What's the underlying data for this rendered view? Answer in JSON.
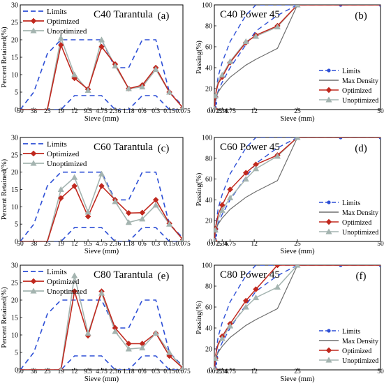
{
  "colors": {
    "limits": "#2d4fd6",
    "optimized": "#c0281e",
    "unoptimized": "#a4b4b0",
    "max_density": "#6e6e6e"
  },
  "chart_data": [
    {
      "id": "a",
      "type": "line",
      "title": "C40 Tarantula",
      "panel_label": "(a)",
      "xlabel": "Sieve (mm)",
      "ylabel": "Percent Retained(%)",
      "categories": [
        "50",
        "38",
        "25",
        "19",
        "12",
        "9.5",
        "4.75",
        "2.36",
        "1.18",
        "0.6",
        "0.3",
        "0.15",
        "0.075"
      ],
      "ylim": [
        0,
        30
      ],
      "yticks": [
        0,
        5,
        10,
        15,
        20,
        25,
        30
      ],
      "legend": [
        "Limits",
        "Optimized",
        "Unoptimized"
      ],
      "limits_upper": [
        0,
        5,
        16,
        20,
        20,
        20,
        20,
        12,
        12,
        20,
        20,
        5,
        1
      ],
      "limits_lower": [
        0,
        0,
        0,
        0,
        4,
        4,
        4,
        0,
        0,
        4,
        4,
        0,
        0
      ],
      "series": [
        {
          "name": "Optimized",
          "values": [
            0,
            0,
            0,
            18.5,
            9,
            5.8,
            18,
            13,
            6,
            7,
            12,
            5,
            0.5
          ]
        },
        {
          "name": "Unoptimized",
          "values": [
            0,
            0,
            0,
            20.5,
            10,
            5.5,
            20,
            12.5,
            6,
            6.5,
            11.5,
            5,
            0.5
          ]
        }
      ]
    },
    {
      "id": "b",
      "type": "line",
      "title": "C40 Power 45",
      "panel_label": "(b)",
      "xlabel": "Sieve (mm)",
      "ylabel": "Passing(%)",
      "xticks": [
        0.075,
        2.36,
        4.75,
        12,
        25,
        50
      ],
      "xtick_labels": [
        "0.075",
        "2.36",
        "4.75",
        "12",
        "25",
        "50"
      ],
      "ylim": [
        0,
        100
      ],
      "yticks": [
        0,
        20,
        40,
        60,
        80,
        100
      ],
      "legend": [
        "Limits",
        "Max Density",
        "Optimized",
        "Unoptimized"
      ],
      "sieves": [
        0.075,
        0.15,
        0.3,
        0.6,
        1.18,
        2.36,
        4.75,
        9.5,
        12.5,
        19,
        25,
        38,
        50
      ],
      "limits_upper": [
        2,
        7,
        12,
        20,
        32,
        45,
        65,
        90,
        100,
        100,
        100,
        100,
        100
      ],
      "limits_lower": [
        0,
        2,
        6,
        12,
        18,
        26,
        40,
        62,
        75,
        90,
        100,
        100,
        100
      ],
      "max_density": [
        5.3,
        7.1,
        9.5,
        12.6,
        16.8,
        22.4,
        30.9,
        42.5,
        48.0,
        58.5,
        100,
        100,
        100
      ],
      "series": [
        {
          "name": "Optimized",
          "values": [
            0.5,
            6,
            12,
            18,
            25,
            31,
            45,
            64,
            71,
            80,
            100,
            100,
            100
          ]
        },
        {
          "name": "Unoptimized",
          "values": [
            0.5,
            6,
            13,
            20,
            27,
            33,
            46,
            65,
            70,
            79,
            100,
            100,
            100
          ]
        }
      ]
    },
    {
      "id": "c",
      "type": "line",
      "title": "C60 Tarantula",
      "panel_label": "(c)",
      "xlabel": "Sieve (mm)",
      "ylabel": "Percent Retained(%)",
      "categories": [
        "50",
        "38",
        "25",
        "19",
        "12",
        "9.5",
        "4.75",
        "2.36",
        "1.18",
        "0.6",
        "0.3",
        "0.15",
        "0.075"
      ],
      "ylim": [
        0,
        30
      ],
      "yticks": [
        0,
        5,
        10,
        15,
        20,
        25,
        30
      ],
      "legend": [
        "Limits",
        "Optimized",
        "Unoptimized"
      ],
      "limits_upper": [
        0,
        5,
        16,
        20,
        20,
        20,
        20,
        12,
        12,
        20,
        20,
        5,
        1
      ],
      "limits_lower": [
        0,
        0,
        0,
        0,
        4,
        4,
        4,
        0,
        0,
        4,
        4,
        0,
        0
      ],
      "series": [
        {
          "name": "Optimized",
          "values": [
            0,
            0,
            0,
            12.5,
            16,
            7.2,
            16,
            12,
            8.2,
            8.3,
            12,
            5.2,
            0.5
          ]
        },
        {
          "name": "Unoptimized",
          "values": [
            0,
            0,
            0,
            15,
            18.5,
            8.5,
            19.5,
            11.5,
            5.5,
            6.5,
            10.5,
            5,
            0.5
          ]
        }
      ]
    },
    {
      "id": "d",
      "type": "line",
      "title": "C60 Power 45",
      "panel_label": "(d)",
      "xlabel": "Sieve (mm)",
      "ylabel": "Passing(%)",
      "xticks": [
        0.075,
        2.36,
        4.75,
        12,
        25,
        50
      ],
      "xtick_labels": [
        "0.075",
        "2.36",
        "4.75",
        "12",
        "25",
        "50"
      ],
      "ylim": [
        0,
        100
      ],
      "yticks": [
        0,
        20,
        40,
        60,
        80,
        100
      ],
      "legend": [
        "Limits",
        "Max Density",
        "Optimized",
        "Unoptimized"
      ],
      "sieves": [
        0.075,
        0.15,
        0.3,
        0.6,
        1.18,
        2.36,
        4.75,
        9.5,
        12.5,
        19,
        25,
        38,
        50
      ],
      "limits_upper": [
        2,
        7,
        12,
        20,
        32,
        45,
        65,
        90,
        100,
        100,
        100,
        100,
        100
      ],
      "limits_lower": [
        0,
        2,
        6,
        12,
        18,
        26,
        40,
        62,
        75,
        90,
        100,
        100,
        100
      ],
      "max_density": [
        5.3,
        7.1,
        9.5,
        12.6,
        16.8,
        22.4,
        30.9,
        42.5,
        48.0,
        58.5,
        100,
        100,
        100
      ],
      "series": [
        {
          "name": "Optimized",
          "values": [
            0.5,
            6,
            12,
            18,
            26,
            35,
            50,
            66,
            74,
            83,
            100,
            100,
            100
          ]
        },
        {
          "name": "Unoptimized",
          "values": [
            0.5,
            5,
            11,
            16,
            22,
            30,
            42,
            60,
            70,
            82,
            100,
            100,
            100
          ]
        }
      ]
    },
    {
      "id": "e",
      "type": "line",
      "title": "C80 Tarantula",
      "panel_label": "(e)",
      "xlabel": "Sieve (mm)",
      "ylabel": "Percent Retained(%)",
      "categories": [
        "50",
        "38",
        "25",
        "19",
        "12",
        "9.5",
        "4.75",
        "2.36",
        "1.18",
        "0.6",
        "0.3",
        "0.15",
        "0.075"
      ],
      "ylim": [
        0,
        30
      ],
      "yticks": [
        0,
        5,
        10,
        15,
        20,
        25,
        30
      ],
      "legend": [
        "Limits",
        "Optimized",
        "Unoptimized"
      ],
      "limits_upper": [
        0,
        5,
        16,
        20,
        20,
        20,
        20,
        12,
        12,
        20,
        20,
        5,
        1
      ],
      "limits_lower": [
        0,
        0,
        0,
        0,
        4,
        4,
        4,
        0,
        0,
        4,
        4,
        0,
        0
      ],
      "series": [
        {
          "name": "Optimized",
          "values": [
            0,
            0,
            0,
            0,
            22.5,
            9.8,
            22.5,
            12,
            7.5,
            7.5,
            10.5,
            4,
            0.5
          ]
        },
        {
          "name": "Unoptimized",
          "values": [
            0,
            0,
            0,
            0,
            27,
            10.5,
            22,
            11,
            6,
            6.3,
            10.5,
            5,
            0.5
          ]
        }
      ]
    },
    {
      "id": "f",
      "type": "line",
      "title": "C80 Power 45",
      "panel_label": "(f)",
      "xlabel": "Sieve (mm)",
      "ylabel": "Passing(%)",
      "xticks": [
        0.075,
        2.36,
        4.75,
        12,
        25,
        50
      ],
      "xtick_labels": [
        "0.075",
        "2.36",
        "4.75",
        "12",
        "25",
        "50"
      ],
      "ylim": [
        0,
        100
      ],
      "yticks": [
        0,
        20,
        40,
        60,
        80,
        100
      ],
      "legend": [
        "Limits",
        "Max Density",
        "Optimized",
        "Unoptimized"
      ],
      "sieves": [
        0.075,
        0.15,
        0.3,
        0.6,
        1.18,
        2.36,
        4.75,
        9.5,
        12.5,
        19,
        25,
        38,
        50
      ],
      "limits_upper": [
        2,
        7,
        12,
        20,
        32,
        45,
        65,
        90,
        100,
        100,
        100,
        100,
        100
      ],
      "limits_lower": [
        0,
        2,
        6,
        12,
        18,
        26,
        40,
        62,
        75,
        90,
        100,
        100,
        100
      ],
      "max_density": [
        5.3,
        7.1,
        9.5,
        12.6,
        16.8,
        22.4,
        30.9,
        42.5,
        48.0,
        58.5,
        100,
        100,
        100
      ],
      "series": [
        {
          "name": "Optimized",
          "values": [
            0.5,
            5,
            11,
            18,
            25,
            32,
            44,
            66,
            77,
            100,
            100,
            100,
            100
          ]
        },
        {
          "name": "Unoptimized",
          "values": [
            0.5,
            5,
            11,
            18,
            24,
            30,
            42,
            60,
            69,
            79,
            100,
            100,
            100
          ]
        }
      ]
    }
  ]
}
